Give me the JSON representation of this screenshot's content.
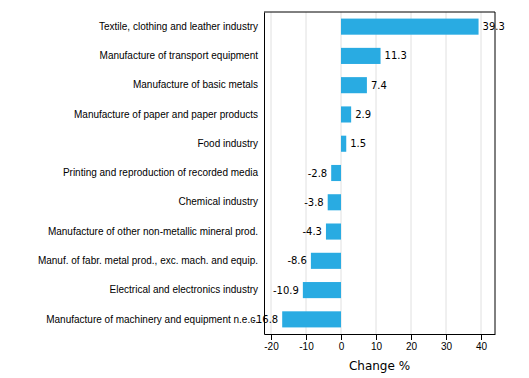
{
  "chart_data": {
    "type": "bar",
    "orientation": "horizontal",
    "categories": [
      "Manufacture of machinery and equipment n.e.c.",
      "Electrical and electronics industry",
      "Manuf. of fabr. metal prod., exc. mach. and equip.",
      "Manufacture of other non-metallic mineral prod.",
      "Chemical industry",
      "Printing and reproduction of recorded media",
      "Food industry",
      "Manufacture of paper and paper products",
      "Manufacture of basic metals",
      "Manufacture of transport equipment",
      "Textile, clothing and leather industry"
    ],
    "values": [
      -16.8,
      -10.9,
      -8.6,
      -4.3,
      -3.8,
      -2.8,
      1.5,
      2.9,
      7.4,
      11.3,
      39.3
    ],
    "color": "#29abe2",
    "xlabel": "Change %",
    "xlim": [
      -22,
      44
    ],
    "xticks": [
      -20,
      -10,
      0,
      10,
      20,
      30,
      40
    ],
    "grid": true,
    "data_labels": true
  }
}
